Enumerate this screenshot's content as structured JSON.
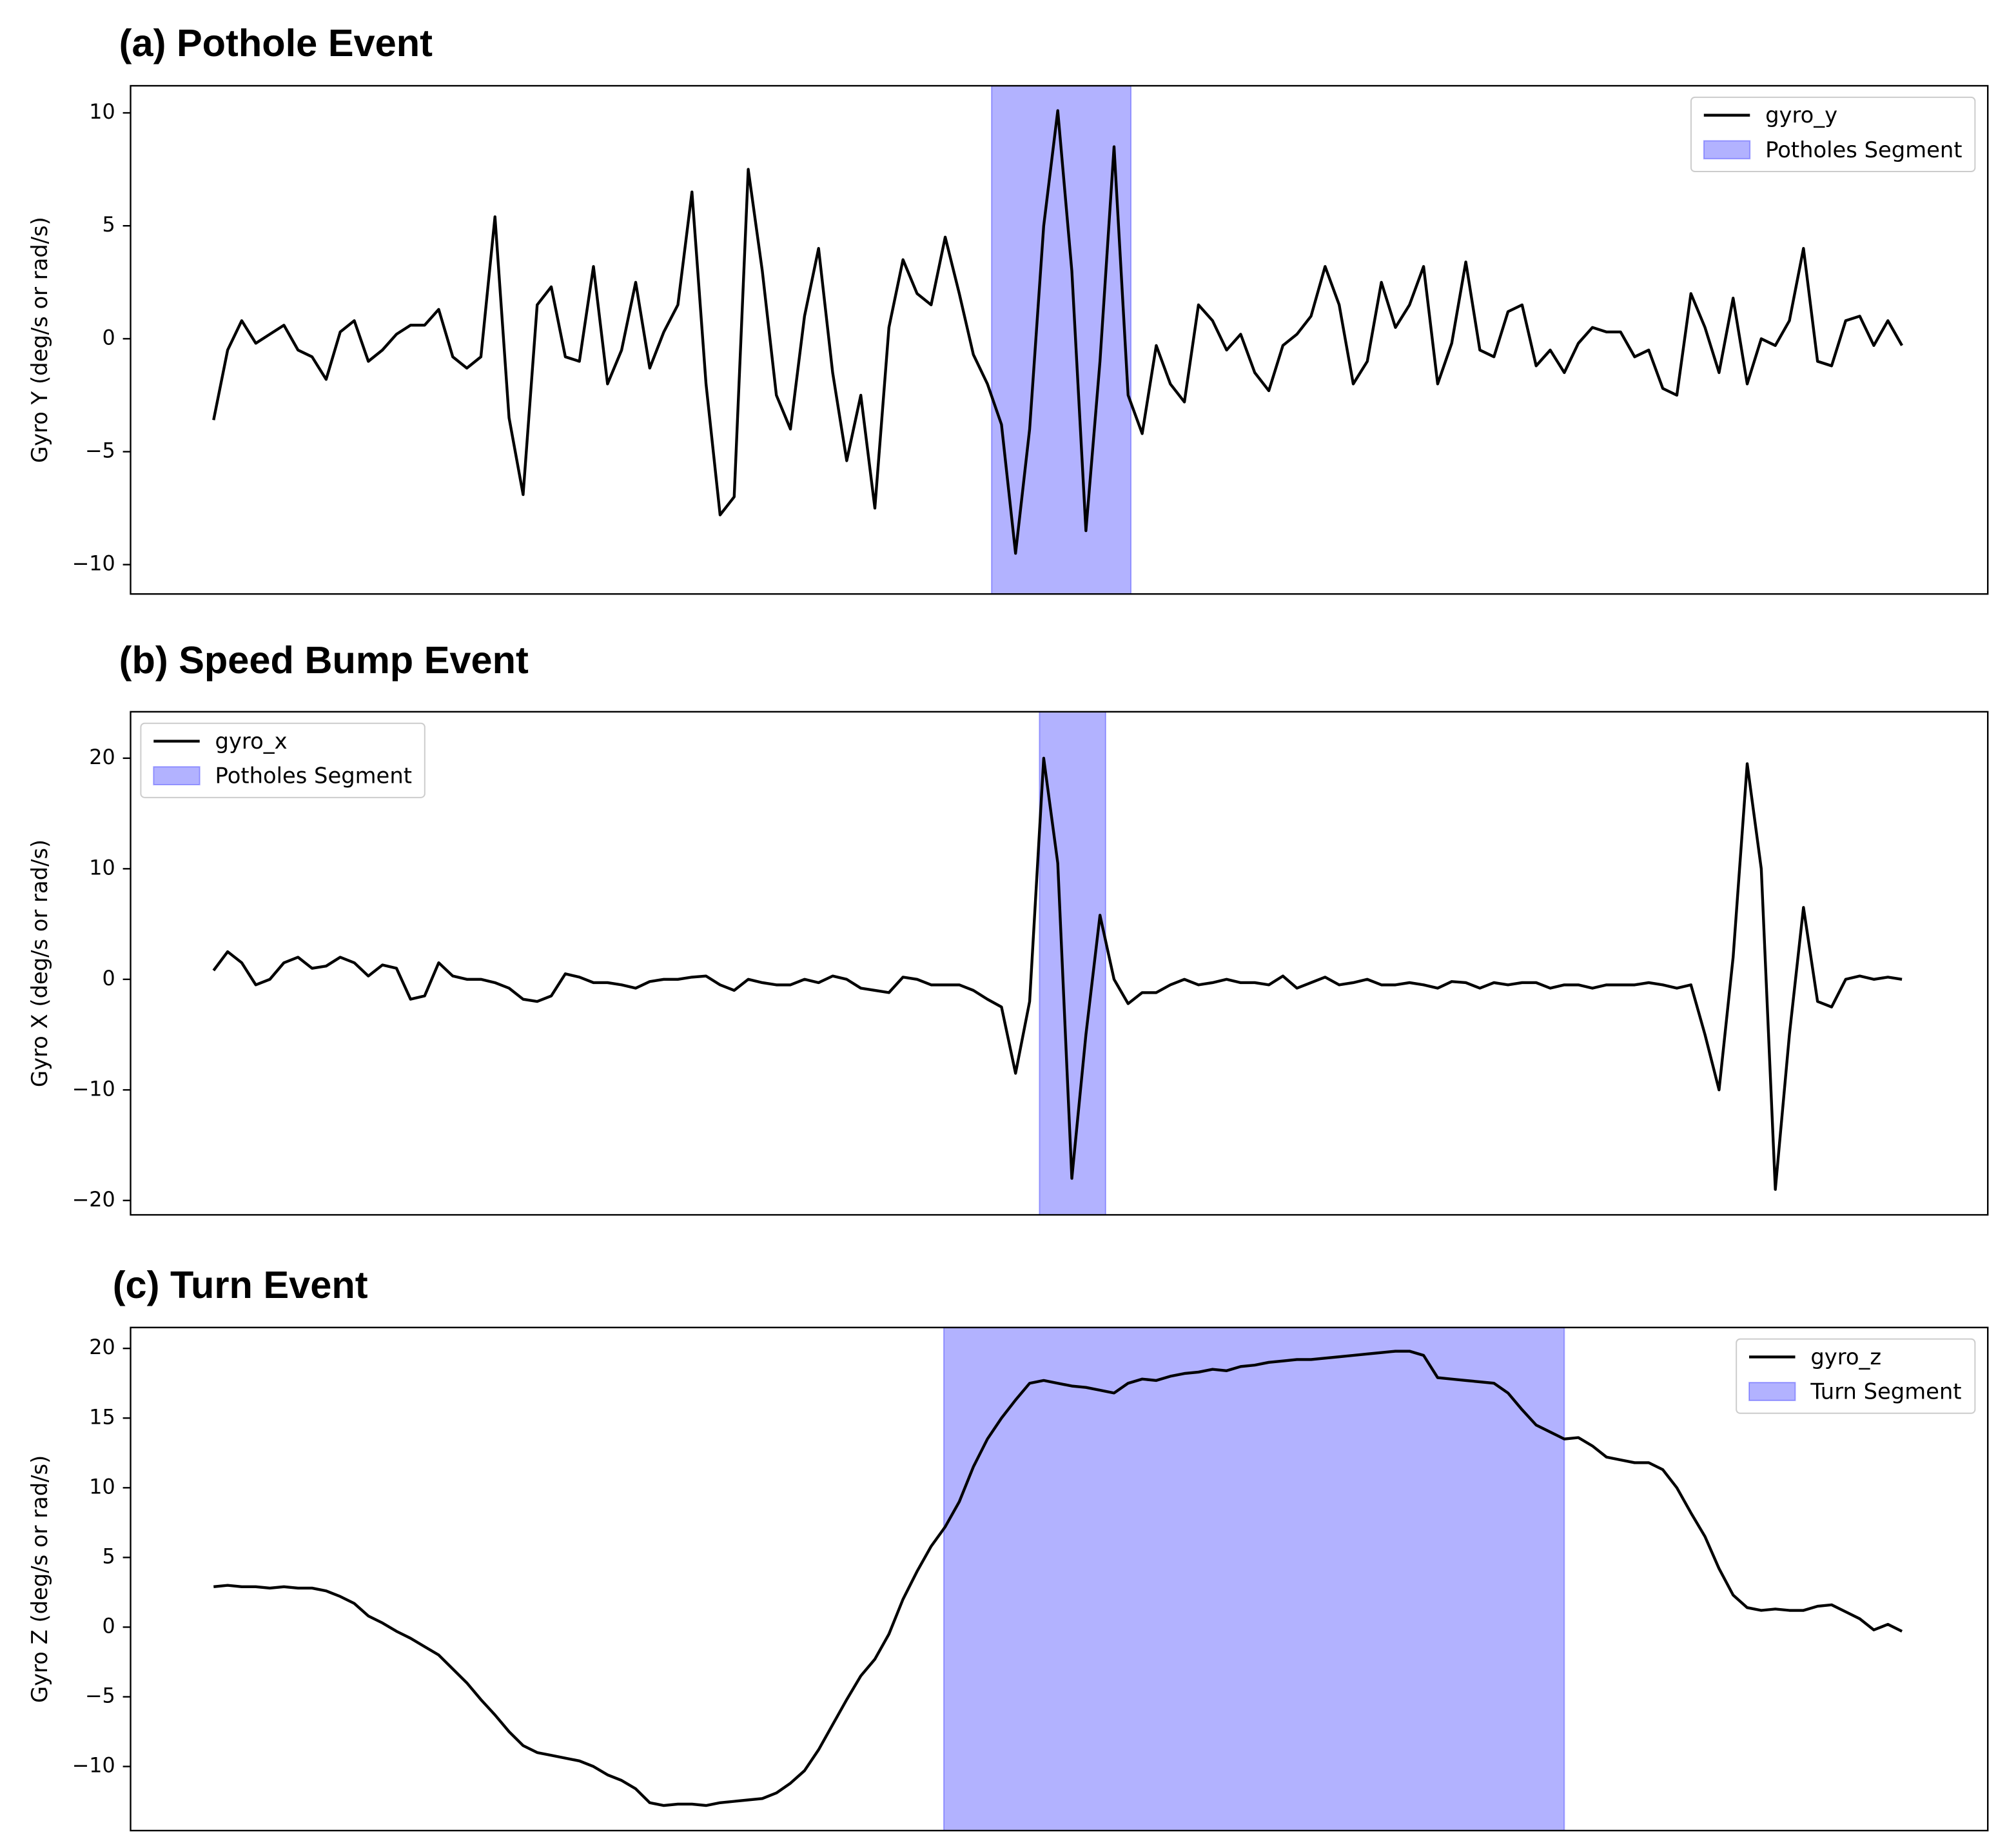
{
  "chart_data": [
    {
      "type": "line",
      "title": "(a) Pothole Event",
      "ylabel": "Gyro Y (deg/s or rad/s)",
      "xlim": [
        -5.9,
        126.1
      ],
      "ylim": [
        -11.3,
        11.2
      ],
      "yticks": [
        {
          "value": -10,
          "label": "−10"
        },
        {
          "value": -5,
          "label": "−5"
        },
        0,
        5,
        10
      ],
      "legend": "upper right",
      "series": [
        {
          "name": "gyro_y",
          "color": "#000000",
          "values": [
            -3.6,
            -0.5,
            0.8,
            -0.2,
            0.2,
            0.6,
            -0.5,
            -0.8,
            -1.8,
            0.3,
            0.8,
            -1.0,
            -0.5,
            0.2,
            0.6,
            0.6,
            1.3,
            -0.8,
            -1.3,
            -0.8,
            5.4,
            -3.5,
            -6.9,
            1.5,
            2.3,
            -0.8,
            -1.0,
            3.2,
            -2.0,
            -0.5,
            2.5,
            -1.3,
            0.3,
            1.5,
            6.5,
            -2.0,
            -7.8,
            -7.0,
            7.5,
            3.0,
            -2.5,
            -4.0,
            1.0,
            4.0,
            -1.5,
            -5.4,
            -2.5,
            -7.5,
            0.5,
            3.5,
            2.0,
            1.5,
            4.5,
            2.0,
            -0.7,
            -2.0,
            -3.8,
            -9.5,
            -4.0,
            5.0,
            10.1,
            3.0,
            -8.5,
            -1.0,
            8.5,
            -2.5,
            -4.2,
            -0.3,
            -2.0,
            -2.8,
            1.5,
            0.8,
            -0.5,
            0.2,
            -1.5,
            -2.3,
            -0.3,
            0.2,
            1.0,
            3.2,
            1.5,
            -2.0,
            -1.0,
            2.5,
            0.5,
            1.5,
            3.2,
            -2.0,
            -0.2,
            3.4,
            -0.5,
            -0.8,
            1.2,
            1.5,
            -1.2,
            -0.5,
            -1.5,
            -0.2,
            0.5,
            0.3,
            0.3,
            -0.8,
            -0.5,
            -2.2,
            -2.5,
            2.0,
            0.5,
            -1.5,
            1.8,
            -2.0,
            0.0,
            -0.3,
            0.8,
            4.0,
            -1.0,
            -1.2,
            0.8,
            1.0,
            -0.3,
            0.8,
            -0.3
          ]
        }
      ],
      "spans": [
        {
          "name": "Potholes Segment",
          "color": "#0000ff",
          "range": [
            55.3,
            65.2
          ]
        }
      ]
    },
    {
      "type": "line",
      "title": "(b) Speed Bump Event",
      "ylabel": "Gyro X (deg/s or rad/s)",
      "xlim": [
        -5.9,
        126.1
      ],
      "ylim": [
        -21.3,
        24.2
      ],
      "yticks": [
        {
          "value": -20,
          "label": "−20"
        },
        {
          "value": -10,
          "label": "−10"
        },
        0,
        10,
        20
      ],
      "legend": "upper left",
      "series": [
        {
          "name": "gyro_x",
          "color": "#000000",
          "values": [
            0.8,
            2.5,
            1.5,
            -0.5,
            0.0,
            1.5,
            2.0,
            1.0,
            1.2,
            2.0,
            1.5,
            0.3,
            1.3,
            1.0,
            -1.8,
            -1.5,
            1.5,
            0.3,
            0.0,
            0.0,
            -0.3,
            -0.8,
            -1.8,
            -2.0,
            -1.5,
            0.5,
            0.2,
            -0.3,
            -0.3,
            -0.5,
            -0.8,
            -0.2,
            0.0,
            0.0,
            0.2,
            0.3,
            -0.5,
            -1.0,
            0.0,
            -0.3,
            -0.5,
            -0.5,
            0.0,
            -0.3,
            0.3,
            0.0,
            -0.8,
            -1.0,
            -1.2,
            0.2,
            0.0,
            -0.5,
            -0.5,
            -0.5,
            -1.0,
            -1.8,
            -2.5,
            -8.5,
            -2.0,
            20.0,
            10.5,
            -18.0,
            -5.0,
            5.8,
            0.0,
            -2.2,
            -1.2,
            -1.2,
            -0.5,
            0.0,
            -0.5,
            -0.3,
            0.0,
            -0.3,
            -0.3,
            -0.5,
            0.3,
            -0.8,
            -0.3,
            0.2,
            -0.5,
            -0.3,
            0.0,
            -0.5,
            -0.5,
            -0.3,
            -0.5,
            -0.8,
            -0.2,
            -0.3,
            -0.8,
            -0.3,
            -0.5,
            -0.3,
            -0.3,
            -0.8,
            -0.5,
            -0.5,
            -0.8,
            -0.5,
            -0.5,
            -0.5,
            -0.3,
            -0.5,
            -0.8,
            -0.5,
            -5.0,
            -10.0,
            2.0,
            19.5,
            10.0,
            -19.0,
            -5.0,
            6.5,
            -2.0,
            -2.5,
            0.0,
            0.3,
            0.0,
            0.2,
            0.0
          ]
        }
      ],
      "spans": [
        {
          "name": "Potholes Segment",
          "color": "#0000ff",
          "range": [
            58.7,
            63.4
          ]
        }
      ]
    },
    {
      "type": "line",
      "title": "(c) Turn Event",
      "ylabel": "Gyro Z (deg/s or rad/s)",
      "xlim": [
        -5.9,
        126.1
      ],
      "ylim": [
        -14.6,
        21.5
      ],
      "yticks": [
        {
          "value": -10,
          "label": "−10"
        },
        {
          "value": -5,
          "label": "−5"
        },
        0,
        5,
        10,
        15,
        20
      ],
      "legend": "upper right",
      "series": [
        {
          "name": "gyro_z",
          "color": "#000000",
          "values": [
            2.9,
            3.0,
            2.9,
            2.9,
            2.8,
            2.9,
            2.8,
            2.8,
            2.6,
            2.2,
            1.7,
            0.8,
            0.3,
            -0.3,
            -0.8,
            -1.4,
            -2.0,
            -3.0,
            -4.0,
            -5.2,
            -6.3,
            -7.5,
            -8.5,
            -9.0,
            -9.2,
            -9.4,
            -9.6,
            -10.0,
            -10.6,
            -11.0,
            -11.6,
            -12.6,
            -12.8,
            -12.7,
            -12.7,
            -12.8,
            -12.6,
            -12.5,
            -12.4,
            -12.3,
            -11.9,
            -11.2,
            -10.3,
            -8.8,
            -7.0,
            -5.2,
            -3.5,
            -2.3,
            -0.5,
            2.0,
            4.0,
            5.8,
            7.2,
            9.0,
            11.5,
            13.5,
            15.0,
            16.3,
            17.5,
            17.7,
            17.5,
            17.3,
            17.2,
            17.0,
            16.8,
            17.5,
            17.8,
            17.7,
            18.0,
            18.2,
            18.3,
            18.5,
            18.4,
            18.7,
            18.8,
            19.0,
            19.1,
            19.2,
            19.2,
            19.3,
            19.4,
            19.5,
            19.6,
            19.7,
            19.8,
            19.8,
            19.5,
            17.9,
            17.8,
            17.7,
            17.6,
            17.5,
            16.8,
            15.6,
            14.5,
            14.0,
            13.5,
            13.6,
            13.0,
            12.2,
            12.0,
            11.8,
            11.8,
            11.3,
            10.0,
            8.2,
            6.5,
            4.2,
            2.3,
            1.4,
            1.2,
            1.3,
            1.2,
            1.2,
            1.5,
            1.6,
            1.1,
            0.6,
            -0.2,
            0.2,
            -0.3
          ]
        }
      ],
      "spans": [
        {
          "name": "Turn Segment",
          "color": "#0000ff",
          "range": [
            51.9,
            96.0
          ]
        }
      ]
    }
  ]
}
